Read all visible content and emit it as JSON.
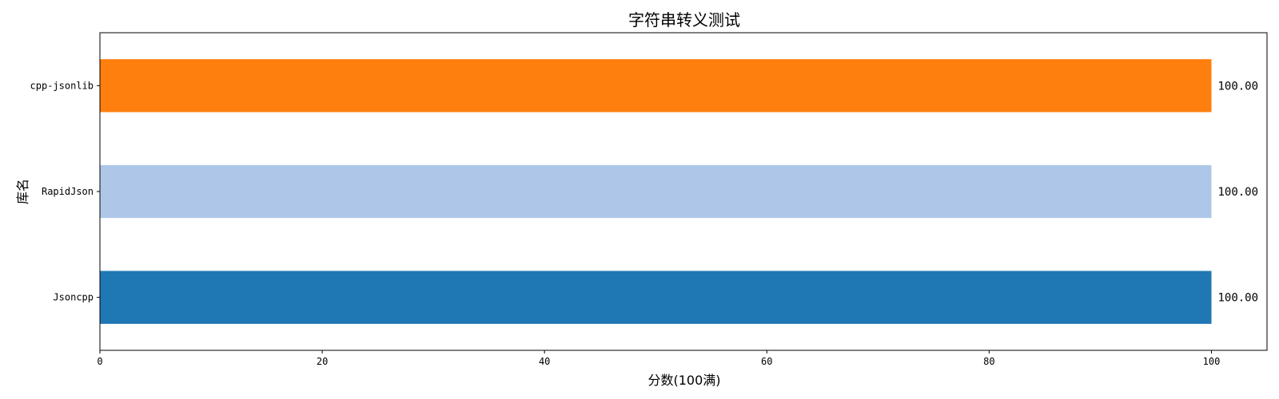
{
  "chart_data": {
    "type": "bar",
    "orientation": "horizontal",
    "title": "字符串转义测试",
    "xlabel": "分数(100满)",
    "ylabel": "库名",
    "categories": [
      "Jsoncpp",
      "RapidJson",
      "cpp-jsonlib"
    ],
    "values": [
      100,
      100,
      100
    ],
    "data_labels": [
      "100.00",
      "100.00",
      "100.00"
    ],
    "colors": [
      "#1f77b4",
      "#aec7e8",
      "#ff7f0e"
    ],
    "xlim": [
      0,
      105
    ],
    "xticks": [
      0,
      20,
      40,
      60,
      80,
      100
    ],
    "xtick_labels": [
      "0",
      "20",
      "40",
      "60",
      "80",
      "100"
    ],
    "grid": false,
    "legend": "none"
  }
}
